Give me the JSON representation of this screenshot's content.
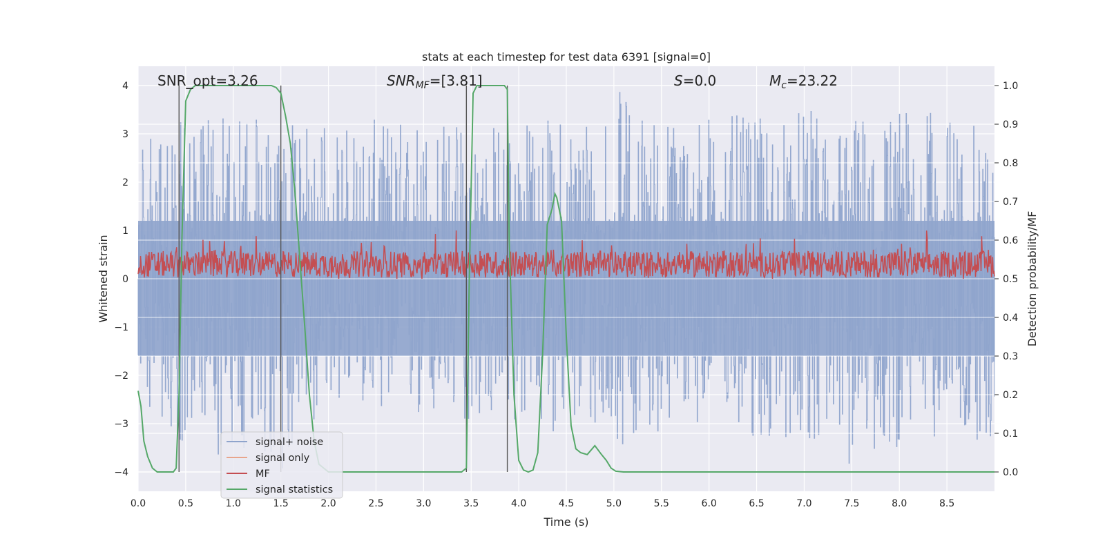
{
  "chart_data": {
    "type": "line",
    "title": "stats at each timestep for test data 6391 [signal=0]",
    "xlabel": "Time (s)",
    "ylabel_left": "Whitened strain",
    "ylabel_right": "Detection probability/MF",
    "xlim": [
      0.0,
      9.0
    ],
    "ylim_left": [
      -4.4,
      4.4
    ],
    "ylim_right": [
      -0.05,
      1.05
    ],
    "xticks": [
      0.0,
      0.5,
      1.0,
      1.5,
      2.0,
      2.5,
      3.0,
      3.5,
      4.0,
      4.5,
      5.0,
      5.5,
      6.0,
      6.5,
      7.0,
      7.5,
      8.0,
      8.5
    ],
    "xtick_labels": [
      "0.0",
      "0.5",
      "1.0",
      "1.5",
      "2.0",
      "2.5",
      "3.0",
      "3.5",
      "4.0",
      "4.5",
      "5.0",
      "5.5",
      "6.0",
      "6.5",
      "7.0",
      "7.5",
      "8.0",
      "8.5"
    ],
    "yticks_left": [
      -4,
      -3,
      -2,
      -1,
      0,
      1,
      2,
      3,
      4
    ],
    "ytick_labels_left": [
      "−4",
      "−3",
      "−2",
      "−1",
      "0",
      "1",
      "2",
      "3",
      "4"
    ],
    "yticks_right": [
      0.0,
      0.1,
      0.2,
      0.3,
      0.4,
      0.5,
      0.6,
      0.7,
      0.8,
      0.9,
      1.0
    ],
    "ytick_labels_right": [
      "0.0",
      "0.1",
      "0.2",
      "0.3",
      "0.4",
      "0.5",
      "0.6",
      "0.7",
      "0.8",
      "0.9",
      "1.0"
    ],
    "annotations": {
      "snr_opt": "SNR_opt=3.26",
      "snr_mf_main": "SNR",
      "snr_mf_sub": "MF",
      "snr_mf_rest": "=[3.81]",
      "s_main": "S",
      "s_rest": "=0.0",
      "mc_main": "M",
      "mc_sub": "c",
      "mc_rest": "=23.22"
    },
    "legend": {
      "position": "lower-left",
      "entries": [
        {
          "label": "signal+ noise",
          "color": "#8fa4cc"
        },
        {
          "label": "signal only",
          "color": "#e8a58c"
        },
        {
          "label": "MF",
          "color": "#c44e52"
        },
        {
          "label": "signal statistics",
          "color": "#55a868"
        }
      ]
    },
    "vertical_lines_x": [
      0.43,
      1.5,
      3.45,
      3.88
    ],
    "series": [
      {
        "name": "signal+ noise",
        "color": "#8fa4cc",
        "description": "dense whitened strain noise, envelope approx",
        "envelope_x": [
          0.0,
          0.5,
          1.0,
          1.5,
          2.0,
          2.5,
          3.0,
          3.5,
          4.0,
          4.5,
          5.0,
          5.5,
          6.0,
          6.5,
          7.0,
          7.5,
          8.0,
          8.5,
          9.0
        ],
        "envelope_upper": [
          2.8,
          3.3,
          3.4,
          3.2,
          3.2,
          3.3,
          3.4,
          3.3,
          3.3,
          3.4,
          4.0,
          3.4,
          3.5,
          3.3,
          3.5,
          3.4,
          3.6,
          3.4,
          3.0
        ],
        "envelope_lower": [
          -2.4,
          -3.5,
          -3.7,
          -4.0,
          -2.6,
          -2.6,
          -3.2,
          -3.0,
          -3.1,
          -3.2,
          -3.5,
          -3.2,
          -2.9,
          -3.5,
          -3.3,
          -4.0,
          -3.5,
          -3.2,
          -3.5
        ]
      },
      {
        "name": "MF",
        "color": "#c44e52",
        "description": "matched filter output oscillating around 0.3",
        "center": 0.3,
        "range": [
          0.0,
          1.0
        ]
      },
      {
        "name": "signal statistics",
        "color": "#55a868",
        "x": [
          0.0,
          0.03,
          0.06,
          0.1,
          0.15,
          0.2,
          0.3,
          0.37,
          0.4,
          0.43,
          0.46,
          0.5,
          0.55,
          0.6,
          0.65,
          1.0,
          1.4,
          1.45,
          1.5,
          1.55,
          1.6,
          1.65,
          1.7,
          1.75,
          1.8,
          1.85,
          1.9,
          2.0,
          3.0,
          3.4,
          3.45,
          3.48,
          3.52,
          3.56,
          3.6,
          3.85,
          3.88,
          3.9,
          3.95,
          4.0,
          4.05,
          4.1,
          4.15,
          4.2,
          4.25,
          4.3,
          4.35,
          4.38,
          4.4,
          4.45,
          4.5,
          4.55,
          4.6,
          4.65,
          4.72,
          4.8,
          4.87,
          4.92,
          4.97,
          5.02,
          5.1,
          5.5,
          9.0
        ],
        "y": [
          0.21,
          0.17,
          0.08,
          0.04,
          0.01,
          0.0,
          0.0,
          0.0,
          0.01,
          0.2,
          0.6,
          0.96,
          0.99,
          1.0,
          1.0,
          1.0,
          1.0,
          0.995,
          0.98,
          0.92,
          0.85,
          0.72,
          0.55,
          0.38,
          0.2,
          0.08,
          0.02,
          0.0,
          0.0,
          0.0,
          0.01,
          0.5,
          0.98,
          1.0,
          1.0,
          1.0,
          0.99,
          0.6,
          0.2,
          0.03,
          0.005,
          0.0,
          0.005,
          0.05,
          0.3,
          0.64,
          0.68,
          0.72,
          0.71,
          0.65,
          0.35,
          0.12,
          0.06,
          0.05,
          0.045,
          0.068,
          0.045,
          0.03,
          0.01,
          0.002,
          0.0,
          0.0,
          0.0
        ]
      }
    ]
  }
}
